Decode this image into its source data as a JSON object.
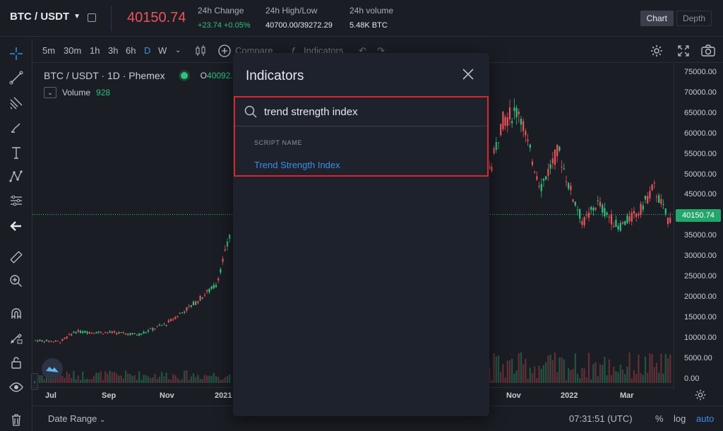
{
  "header": {
    "pair": "BTC / USDT",
    "last_price": "40150.74",
    "stats": [
      {
        "label": "24h Change",
        "value": "+23.74 +0.05%"
      },
      {
        "label": "24h High/Low",
        "value": "40700.00/39272.29"
      },
      {
        "label": "24h volume",
        "value": "5.48K BTC"
      }
    ],
    "view_tabs": [
      "Chart",
      "Depth"
    ],
    "active_view": "Chart"
  },
  "toolbar": {
    "intervals": [
      "5m",
      "30m",
      "1h",
      "3h",
      "6h",
      "D",
      "W"
    ],
    "active_interval": "D",
    "compare_label": "Compare",
    "indicators_label": "Indicators"
  },
  "legend": {
    "symbol": "BTC / USDT · 1D · Phemex",
    "open_prefix": "O",
    "open_value": "40092.",
    "volume_label": "Volume",
    "volume_value": "928"
  },
  "price_axis": [
    "75000.00",
    "70000.00",
    "65000.00",
    "60000.00",
    "55000.00",
    "50000.00",
    "45000.00",
    "40000.00",
    "35000.00",
    "30000.00",
    "25000.00",
    "20000.00",
    "15000.00",
    "10000.00",
    "5000.00",
    "0.00"
  ],
  "current_price_tag": "40150.74",
  "time_axis": [
    "Jul",
    "Sep",
    "Nov",
    "2021",
    "Nov",
    "2022",
    "Mar"
  ],
  "bottom": {
    "date_range_label": "Date Range",
    "clock": "07:31:51 (UTC)",
    "percent_label": "%",
    "log_label": "log",
    "auto_label": "auto"
  },
  "modal": {
    "title": "Indicators",
    "search_value": "trend strength index",
    "section_label": "SCRIPT NAME",
    "results": [
      "Trend Strength Index"
    ]
  },
  "colors": {
    "up": "#2ec27e",
    "down": "#f0515a",
    "accent": "#3b8fe8",
    "highlight": "#d9262c"
  }
}
